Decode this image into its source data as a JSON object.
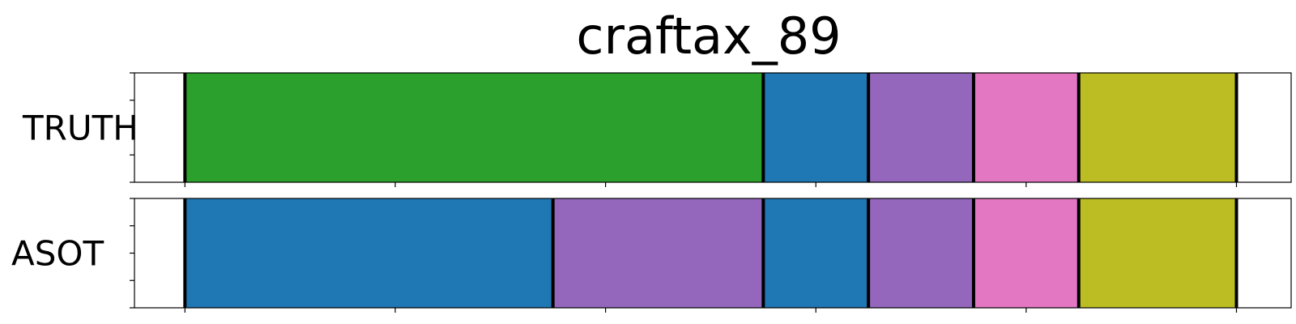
{
  "chart_data": {
    "type": "segmentation",
    "title": "craftax_89",
    "x_range": [
      -12,
      263
    ],
    "x_ticks": [
      0,
      50,
      100,
      150,
      200,
      250
    ],
    "rows": [
      {
        "label": "TRUTH",
        "segments": [
          {
            "start": 0,
            "end": 137.5,
            "color": "#2ca02c"
          },
          {
            "start": 137.5,
            "end": 162.5,
            "color": "#1f77b4"
          },
          {
            "start": 162.5,
            "end": 187.5,
            "color": "#9467bd"
          },
          {
            "start": 187.5,
            "end": 212.5,
            "color": "#e377c2"
          },
          {
            "start": 212.5,
            "end": 250,
            "color": "#bcbd22"
          }
        ]
      },
      {
        "label": "ASOT",
        "segments": [
          {
            "start": 0,
            "end": 87.5,
            "color": "#1f77b4"
          },
          {
            "start": 87.5,
            "end": 137.5,
            "color": "#9467bd"
          },
          {
            "start": 137.5,
            "end": 162.5,
            "color": "#1f77b4"
          },
          {
            "start": 162.5,
            "end": 187.5,
            "color": "#9467bd"
          },
          {
            "start": 187.5,
            "end": 212.5,
            "color": "#e377c2"
          },
          {
            "start": 212.5,
            "end": 250,
            "color": "#bcbd22"
          }
        ]
      }
    ]
  }
}
